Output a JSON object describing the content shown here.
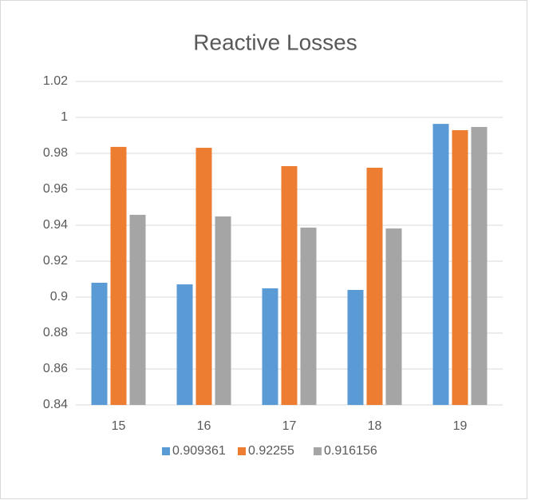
{
  "chart_data": {
    "type": "bar",
    "title": "Reactive Losses",
    "categories": [
      "15",
      "16",
      "17",
      "18",
      "19"
    ],
    "series": [
      {
        "name": "0.909361",
        "color": "#5b9bd5",
        "values": [
          0.908,
          0.9071,
          0.9049,
          0.904,
          0.9964
        ]
      },
      {
        "name": "0.92255",
        "color": "#ed7d31",
        "values": [
          0.9836,
          0.9831,
          0.9729,
          0.972,
          0.9929
        ]
      },
      {
        "name": "0.916156",
        "color": "#a5a5a5",
        "values": [
          0.9458,
          0.9449,
          0.9387,
          0.9382,
          0.9947
        ]
      }
    ],
    "ylim": [
      0.84,
      1.02
    ],
    "yticks": [
      0.84,
      0.86,
      0.88,
      0.9,
      0.92,
      0.94,
      0.96,
      0.98,
      1,
      1.02
    ],
    "grid": true,
    "legend": "bottom"
  }
}
